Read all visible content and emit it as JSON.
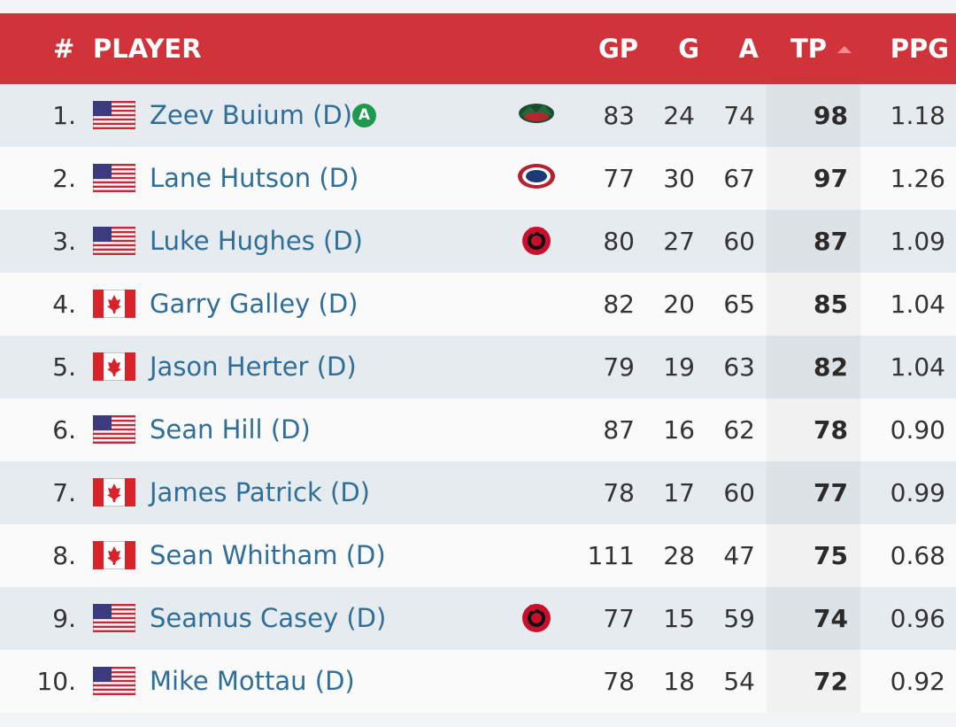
{
  "header": {
    "rank": "#",
    "player": "PLAYER",
    "gp": "GP",
    "g": "G",
    "a": "A",
    "tp": "TP",
    "ppg": "PPG"
  },
  "rows": [
    {
      "rank": "1.",
      "name": "Zeev Buium (D)",
      "badge": "A",
      "gp": 83,
      "g": 24,
      "a": 74,
      "tp": 98,
      "ppg": "1.18"
    },
    {
      "rank": "2.",
      "name": "Lane Hutson (D)",
      "gp": 77,
      "g": 30,
      "a": 67,
      "tp": 97,
      "ppg": "1.26"
    },
    {
      "rank": "3.",
      "name": "Luke Hughes (D)",
      "gp": 80,
      "g": 27,
      "a": 60,
      "tp": 87,
      "ppg": "1.09"
    },
    {
      "rank": "4.",
      "name": "Garry Galley (D)",
      "gp": 82,
      "g": 20,
      "a": 65,
      "tp": 85,
      "ppg": "1.04"
    },
    {
      "rank": "5.",
      "name": "Jason Herter (D)",
      "gp": 79,
      "g": 19,
      "a": 63,
      "tp": 82,
      "ppg": "1.04"
    },
    {
      "rank": "6.",
      "name": "Sean Hill (D)",
      "gp": 87,
      "g": 16,
      "a": 62,
      "tp": 78,
      "ppg": "0.90"
    },
    {
      "rank": "7.",
      "name": "James Patrick (D)",
      "gp": 78,
      "g": 17,
      "a": 60,
      "tp": 77,
      "ppg": "0.99"
    },
    {
      "rank": "8.",
      "name": "Sean Whitham (D)",
      "gp": 111,
      "g": 28,
      "a": 47,
      "tp": 75,
      "ppg": "0.68"
    },
    {
      "rank": "9.",
      "name": "Seamus Casey (D)",
      "gp": 77,
      "g": 15,
      "a": 59,
      "tp": 74,
      "ppg": "0.96"
    },
    {
      "rank": "10.",
      "name": "Mike Mottau (D)",
      "gp": 78,
      "g": 18,
      "a": 54,
      "tp": 72,
      "ppg": "0.92"
    }
  ]
}
